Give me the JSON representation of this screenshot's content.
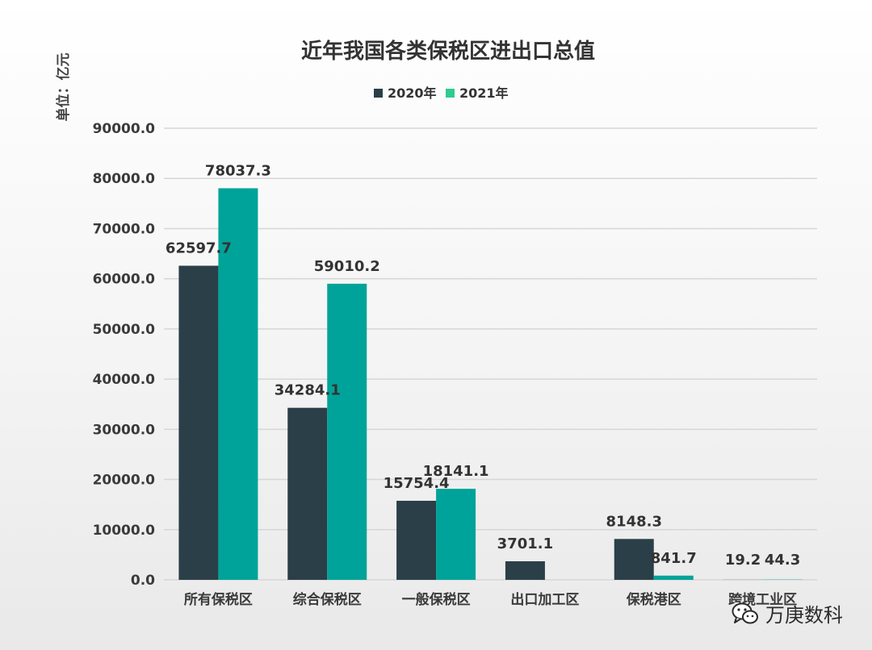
{
  "chart_data": {
    "type": "bar",
    "title": "近年我国各类保税区进出口总值",
    "ylabel": "单位：亿元",
    "categories": [
      "所有保税区",
      "综合保税区",
      "一般保税区",
      "出口加工区",
      "保税港区",
      "跨境工业区"
    ],
    "series": [
      {
        "name": "2020年",
        "color": "#2b3f48",
        "values": [
          62597.7,
          34284.1,
          15754.4,
          3701.1,
          8148.3,
          19.2
        ],
        "labels": [
          "62597.7",
          "34284.1",
          "15754.4",
          "3701.1",
          "8148.3",
          "19.2"
        ]
      },
      {
        "name": "2021年",
        "color": "#00a399",
        "values": [
          78037.3,
          59010.2,
          18141.1,
          null,
          841.7,
          44.3
        ],
        "labels": [
          "78037.3",
          "59010.2",
          "18141.1",
          null,
          "841.7",
          "44.3"
        ]
      }
    ],
    "legend_swatch_colors": [
      "#2b3f48",
      "#2ecc8f"
    ],
    "ylim": [
      0,
      90000
    ],
    "yticks": [
      0,
      10000,
      20000,
      30000,
      40000,
      50000,
      60000,
      70000,
      80000,
      90000
    ],
    "ytick_labels": [
      "0.0",
      "10000.0",
      "20000.0",
      "30000.0",
      "40000.0",
      "50000.0",
      "60000.0",
      "70000.0",
      "80000.0",
      "90000.0"
    ],
    "grid": true,
    "legend_position": "top-center"
  },
  "watermark": {
    "text": "万庚数科",
    "icon": "wechat-icon"
  }
}
